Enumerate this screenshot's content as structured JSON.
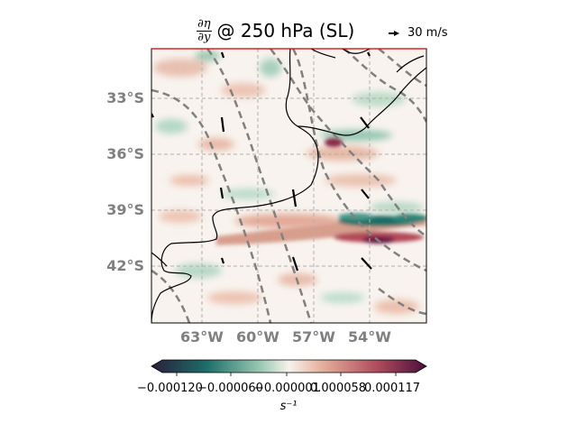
{
  "title": {
    "frac_num": "∂η",
    "frac_den": "∂y",
    "text": "@ 250 hPa (SL)"
  },
  "reference_vector": {
    "label": "30 m/s",
    "speed": 30
  },
  "lat_ticks": [
    "33°S",
    "36°S",
    "39°S",
    "42°S"
  ],
  "lon_ticks": [
    "63°W",
    "60°W",
    "57°W",
    "54°W"
  ],
  "map_extent": {
    "lon": [
      -66,
      -51
    ],
    "lat": [
      -45,
      -30
    ]
  },
  "colorbar": {
    "ticks": [
      "−0.000120",
      "−0.000060",
      "−0.000001",
      "0.000058",
      "0.000117"
    ],
    "unit": "s⁻¹",
    "cmap": [
      "#2a1e3c",
      "#1c6e6a",
      "#9ccbb4",
      "#f6f2ec",
      "#e5b09c",
      "#b04c5c",
      "#4a0f3c"
    ]
  },
  "colors": {
    "coast": "#000000",
    "contour": "#808080",
    "grid": "#b0b0b0",
    "tick": "#808080",
    "top_line": "#cc0000"
  }
}
